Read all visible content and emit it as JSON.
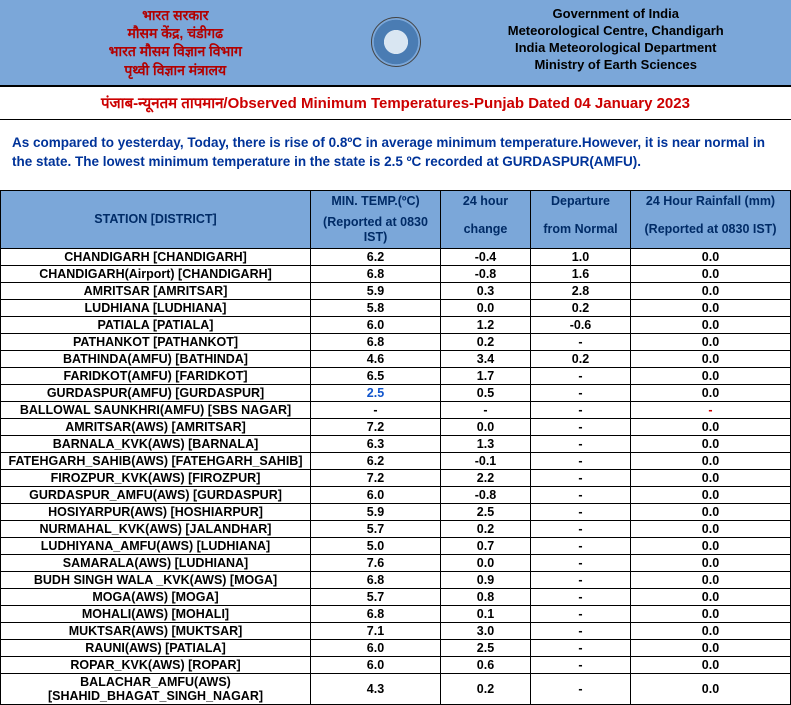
{
  "header": {
    "left_lines": [
      "भारत सरकार",
      "मौसम केंद्र, चंडीगढ",
      "भारत मौसम विज्ञान विभाग",
      "पृथ्वी विज्ञान मंत्रालय"
    ],
    "right_lines": [
      "Government of India",
      "Meteorological Centre, Chandigarh",
      "India Meteorological Department",
      "Ministry of Earth Sciences"
    ]
  },
  "title": {
    "hindi": "पंजाब-न्यूनतम तापमान/",
    "english": "Observed Minimum Temperatures-Punjab Dated 04 January 2023"
  },
  "summary": "As compared to yesterday, Today, there is rise of 0.8ºC in average minimum temperature.However, it is near normal in the state. The lowest minimum temperature in the state is 2.5 ºC recorded at GURDASPUR(AMFU).",
  "columns": {
    "station": "STATION  [DISTRICT]",
    "min_temp_l1": "MIN. TEMP.(ºC)",
    "min_temp_l2": "(Reported at 0830 IST)",
    "change_l1": "24 hour",
    "change_l2": "change",
    "dep_l1": "Departure",
    "dep_l2": "from Normal",
    "rain_l1": "24 Hour Rainfall (mm)",
    "rain_l2": "(Reported at 0830 IST)"
  },
  "rows": [
    {
      "station": "CHANDIGARH  [CHANDIGARH]",
      "min": "6.2",
      "chg": "-0.4",
      "dep": "1.0",
      "rain": "0.0"
    },
    {
      "station": "CHANDIGARH(Airport)  [CHANDIGARH]",
      "min": "6.8",
      "chg": "-0.8",
      "dep": "1.6",
      "rain": "0.0"
    },
    {
      "station": "AMRITSAR  [AMRITSAR]",
      "min": "5.9",
      "chg": "0.3",
      "dep": "2.8",
      "rain": "0.0"
    },
    {
      "station": "LUDHIANA  [LUDHIANA]",
      "min": "5.8",
      "chg": "0.0",
      "dep": "0.2",
      "rain": "0.0"
    },
    {
      "station": "PATIALA  [PATIALA]",
      "min": "6.0",
      "chg": "1.2",
      "dep": "-0.6",
      "rain": "0.0"
    },
    {
      "station": "PATHANKOT  [PATHANKOT]",
      "min": "6.8",
      "chg": "0.2",
      "dep": "-",
      "rain": "0.0"
    },
    {
      "station": "BATHINDA(AMFU)  [BATHINDA]",
      "min": "4.6",
      "chg": "3.4",
      "dep": "0.2",
      "rain": "0.0"
    },
    {
      "station": "FARIDKOT(AMFU)  [FARIDKOT]",
      "min": "6.5",
      "chg": "1.7",
      "dep": "-",
      "rain": "0.0"
    },
    {
      "station": "GURDASPUR(AMFU)  [GURDASPUR]",
      "min": "2.5",
      "chg": "0.5",
      "dep": "-",
      "rain": "0.0",
      "lowest": true
    },
    {
      "station": "BALLOWAL SAUNKHRI(AMFU)  [SBS NAGAR]",
      "min": "-",
      "chg": "-",
      "dep": "-",
      "rain": "-",
      "red": true
    },
    {
      "station": "AMRITSAR(AWS)  [AMRITSAR]",
      "min": "7.2",
      "chg": "0.0",
      "dep": "-",
      "rain": "0.0"
    },
    {
      "station": "BARNALA_KVK(AWS)  [BARNALA]",
      "min": "6.3",
      "chg": "1.3",
      "dep": "-",
      "rain": "0.0"
    },
    {
      "station": "FATEHGARH_SAHIB(AWS)  [FATEHGARH_SAHIB]",
      "min": "6.2",
      "chg": "-0.1",
      "dep": "-",
      "rain": "0.0"
    },
    {
      "station": "FIROZPUR_KVK(AWS)  [FIROZPUR]",
      "min": "7.2",
      "chg": "2.2",
      "dep": "-",
      "rain": "0.0"
    },
    {
      "station": "GURDASPUR_AMFU(AWS)  [GURDASPUR]",
      "min": "6.0",
      "chg": "-0.8",
      "dep": "-",
      "rain": "0.0"
    },
    {
      "station": "HOSIYARPUR(AWS)  [HOSHIARPUR]",
      "min": "5.9",
      "chg": "2.5",
      "dep": "-",
      "rain": "0.0"
    },
    {
      "station": "NURMAHAL_KVK(AWS)  [JALANDHAR]",
      "min": "5.7",
      "chg": "0.2",
      "dep": "-",
      "rain": "0.0"
    },
    {
      "station": "LUDHIYANA_AMFU(AWS)  [LUDHIANA]",
      "min": "5.0",
      "chg": "0.7",
      "dep": "-",
      "rain": "0.0"
    },
    {
      "station": "SAMARALA(AWS)  [LUDHIANA]",
      "min": "7.6",
      "chg": "0.0",
      "dep": "-",
      "rain": "0.0"
    },
    {
      "station": "BUDH SINGH WALA _KVK(AWS)  [MOGA]",
      "min": "6.8",
      "chg": "0.9",
      "dep": "-",
      "rain": "0.0"
    },
    {
      "station": "MOGA(AWS)  [MOGA]",
      "min": "5.7",
      "chg": "0.8",
      "dep": "-",
      "rain": "0.0"
    },
    {
      "station": "MOHALI(AWS)  [MOHALI]",
      "min": "6.8",
      "chg": "0.1",
      "dep": "-",
      "rain": "0.0"
    },
    {
      "station": "MUKTSAR(AWS)  [MUKTSAR]",
      "min": "7.1",
      "chg": "3.0",
      "dep": "-",
      "rain": "0.0"
    },
    {
      "station": "RAUNI(AWS)  [PATIALA]",
      "min": "6.0",
      "chg": "2.5",
      "dep": "-",
      "rain": "0.0"
    },
    {
      "station": "ROPAR_KVK(AWS)  [ROPAR]",
      "min": "6.0",
      "chg": "0.6",
      "dep": "-",
      "rain": "0.0"
    },
    {
      "station": "BALACHAR_AMFU(AWS)  [SHAHID_BHAGAT_SINGH_NAGAR]",
      "min": "4.3",
      "chg": "0.2",
      "dep": "-",
      "rain": "0.0"
    }
  ]
}
